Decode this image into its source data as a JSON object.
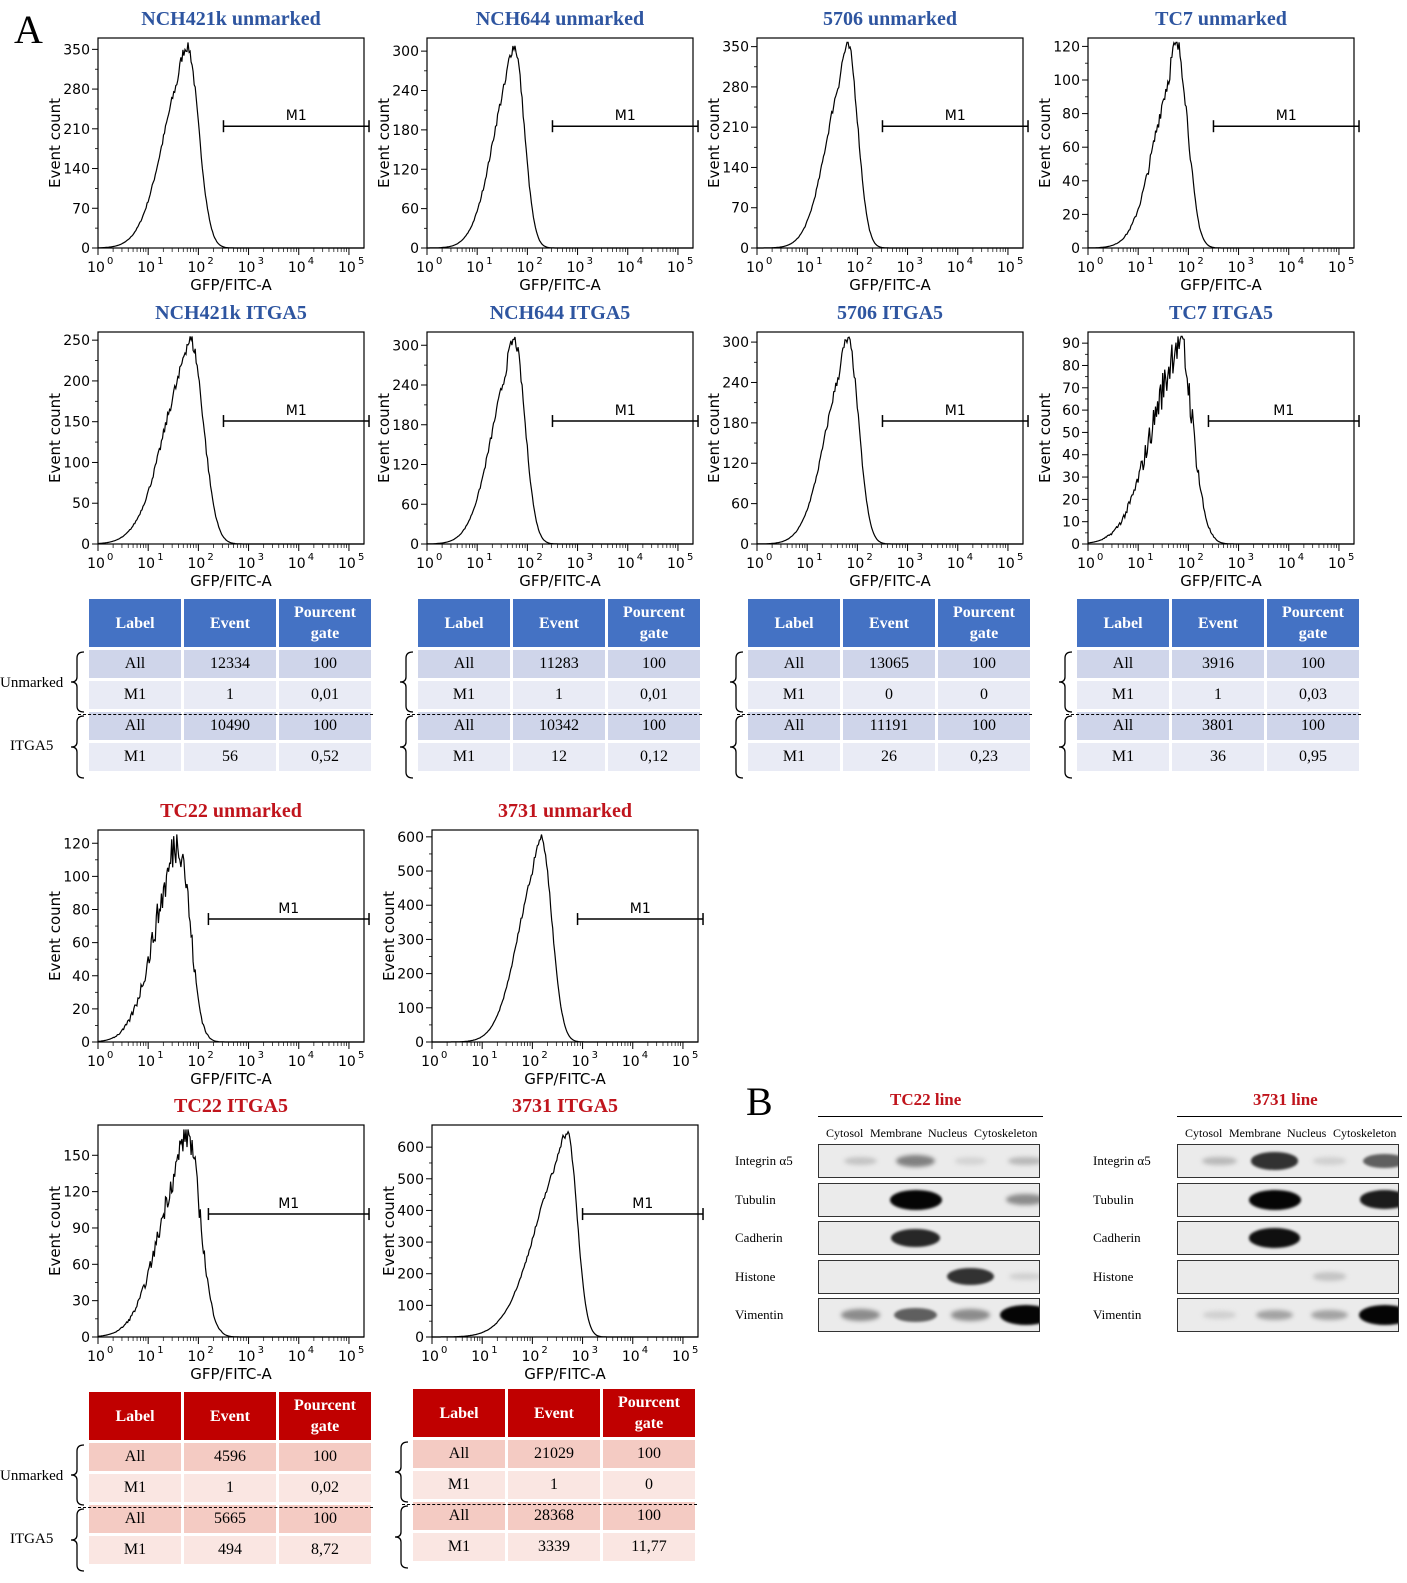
{
  "panels": {
    "a": "A",
    "b": "B"
  },
  "histograms": [
    {
      "title": "NCH421k unmarked",
      "color": "blue",
      "yticks": [
        0,
        70,
        140,
        210,
        280,
        350
      ],
      "ymax": 370,
      "peak": 60,
      "width": 0.32,
      "noise": 0.03,
      "gate": [
        2.5,
        5.4
      ],
      "kind": "normal"
    },
    {
      "title": "NCH644 unmarked",
      "color": "blue",
      "yticks": [
        0,
        60,
        120,
        180,
        240,
        300
      ],
      "ymax": 320,
      "peak": 55,
      "width": 0.28,
      "noise": 0.03,
      "gate": [
        2.5,
        5.4
      ],
      "kind": "normal"
    },
    {
      "title": "5706 unmarked",
      "color": "blue",
      "yticks": [
        0,
        70,
        140,
        210,
        280,
        350
      ],
      "ymax": 365,
      "peak": 65,
      "width": 0.28,
      "noise": 0.03,
      "gate": [
        2.5,
        5.4
      ],
      "kind": "normal"
    },
    {
      "title": "TC7 unmarked",
      "color": "blue",
      "yticks": [
        0,
        20,
        40,
        60,
        80,
        100,
        120
      ],
      "ymax": 125,
      "peak": 60,
      "width": 0.3,
      "noise": 0.06,
      "gate": [
        2.5,
        5.4
      ],
      "kind": "normal"
    },
    {
      "title": "NCH421k ITGA5",
      "color": "blue",
      "yticks": [
        0,
        50,
        100,
        150,
        200,
        250
      ],
      "ymax": 260,
      "peak": 70,
      "width": 0.36,
      "noise": 0.04,
      "gate": [
        2.5,
        5.4
      ],
      "kind": "normal"
    },
    {
      "title": "NCH644 ITGA5",
      "color": "blue",
      "yticks": [
        0,
        60,
        120,
        180,
        240,
        300
      ],
      "ymax": 320,
      "peak": 55,
      "width": 0.3,
      "noise": 0.03,
      "gate": [
        2.5,
        5.4
      ],
      "kind": "normal"
    },
    {
      "title": "5706 ITGA5",
      "color": "blue",
      "yticks": [
        0,
        60,
        120,
        180,
        240,
        300
      ],
      "ymax": 315,
      "peak": 65,
      "width": 0.3,
      "noise": 0.03,
      "gate": [
        2.5,
        5.4
      ],
      "kind": "normal"
    },
    {
      "title": "TC7 ITGA5",
      "color": "blue",
      "yticks": [
        0,
        10,
        20,
        30,
        40,
        50,
        60,
        70,
        80,
        90
      ],
      "ymax": 95,
      "peak": 65,
      "width": 0.38,
      "noise": 0.12,
      "gate": [
        2.4,
        5.4
      ],
      "kind": "normal"
    },
    {
      "title": "TC22 unmarked",
      "color": "red",
      "yticks": [
        0,
        20,
        40,
        60,
        80,
        100,
        120
      ],
      "ymax": 128,
      "peak": 40,
      "width": 0.32,
      "noise": 0.12,
      "gate": [
        2.2,
        5.4
      ],
      "kind": "normal"
    },
    {
      "title": "3731 unmarked",
      "color": "red",
      "yticks": [
        0,
        100,
        200,
        300,
        400,
        500,
        600
      ],
      "ymax": 620,
      "peak": 150,
      "width": 0.3,
      "noise": 0.02,
      "gate": [
        2.9,
        5.4
      ],
      "kind": "normal"
    },
    {
      "title": "TC22 ITGA5",
      "color": "red",
      "yticks": [
        0,
        30,
        60,
        90,
        120,
        150
      ],
      "ymax": 175,
      "peak": 60,
      "width": 0.36,
      "noise": 0.08,
      "gate": [
        2.2,
        5.4
      ],
      "kind": "normal"
    },
    {
      "title": "3731 ITGA5",
      "color": "red",
      "yticks": [
        0,
        100,
        200,
        300,
        400,
        500,
        600
      ],
      "ymax": 670,
      "peak": 500,
      "width": 0.42,
      "noise": 0.02,
      "gate": [
        3.0,
        5.4
      ],
      "kind": "skew"
    }
  ],
  "axis_common": {
    "xlabel": "GFP/FITC-A",
    "ylabel": "Event count",
    "gate_label": "M1",
    "xtick_base": "10",
    "xtick_exps": [
      "0",
      "1",
      "2",
      "3",
      "4",
      "5"
    ]
  },
  "tables": [
    {
      "color": "blue",
      "headers": [
        "Label",
        "Event",
        "Pourcent gate"
      ],
      "rows": [
        [
          "All",
          "12334",
          "100"
        ],
        [
          "M1",
          "1",
          "0,01"
        ],
        [
          "All",
          "10490",
          "100"
        ],
        [
          "M1",
          "56",
          "0,52"
        ]
      ]
    },
    {
      "color": "blue",
      "headers": [
        "Label",
        "Event",
        "Pourcent gate"
      ],
      "rows": [
        [
          "All",
          "11283",
          "100"
        ],
        [
          "M1",
          "1",
          "0,01"
        ],
        [
          "All",
          "10342",
          "100"
        ],
        [
          "M1",
          "12",
          "0,12"
        ]
      ]
    },
    {
      "color": "blue",
      "headers": [
        "Label",
        "Event",
        "Pourcent gate"
      ],
      "rows": [
        [
          "All",
          "13065",
          "100"
        ],
        [
          "M1",
          "0",
          "0"
        ],
        [
          "All",
          "11191",
          "100"
        ],
        [
          "M1",
          "26",
          "0,23"
        ]
      ]
    },
    {
      "color": "blue",
      "headers": [
        "Label",
        "Event",
        "Pourcent gate"
      ],
      "rows": [
        [
          "All",
          "3916",
          "100"
        ],
        [
          "M1",
          "1",
          "0,03"
        ],
        [
          "All",
          "3801",
          "100"
        ],
        [
          "M1",
          "36",
          "0,95"
        ]
      ]
    },
    {
      "color": "red",
      "headers": [
        "Label",
        "Event",
        "Pourcent gate"
      ],
      "rows": [
        [
          "All",
          "4596",
          "100"
        ],
        [
          "M1",
          "1",
          "0,02"
        ],
        [
          "All",
          "5665",
          "100"
        ],
        [
          "M1",
          "494",
          "8,72"
        ]
      ]
    },
    {
      "color": "red",
      "headers": [
        "Label",
        "Event",
        "Pourcent gate"
      ],
      "rows": [
        [
          "All",
          "21029",
          "100"
        ],
        [
          "M1",
          "1",
          "0"
        ],
        [
          "All",
          "28368",
          "100"
        ],
        [
          "M1",
          "3339",
          "11,77"
        ]
      ]
    }
  ],
  "row_group_labels": {
    "unmarked": "Unmarked",
    "itga5": "ITGA5"
  },
  "western": {
    "columns": [
      "Cytosol",
      "Membrane",
      "Nucleus",
      "Cytoskeleton"
    ],
    "proteins": [
      "Integrin α5",
      "Tubulin",
      "Cadherin",
      "Histone",
      "Vimentin"
    ],
    "blots": [
      {
        "title": "TC22 line",
        "intensity": [
          [
            0.15,
            0.45,
            0.08,
            0.2
          ],
          [
            0,
            1,
            0,
            0.4
          ],
          [
            0,
            0.85,
            0,
            0
          ],
          [
            0,
            0,
            0.8,
            0.1
          ],
          [
            0.4,
            0.6,
            0.4,
            1
          ]
        ]
      },
      {
        "title": "3731 line",
        "intensity": [
          [
            0.2,
            0.8,
            0.1,
            0.6
          ],
          [
            0,
            1,
            0,
            0.9
          ],
          [
            0,
            0.95,
            0,
            0
          ],
          [
            0,
            0,
            0.15,
            0
          ],
          [
            0.1,
            0.3,
            0.3,
            1
          ]
        ]
      }
    ]
  },
  "chart_data": {
    "type": "histogram",
    "xlabel": "GFP/FITC-A",
    "ylabel": "Event count",
    "xscale": "log",
    "xlim": [
      1,
      100000
    ],
    "series": [
      {
        "name": "NCH421k unmarked",
        "ylim": [
          0,
          370
        ]
      },
      {
        "name": "NCH644 unmarked",
        "ylim": [
          0,
          320
        ]
      },
      {
        "name": "5706 unmarked",
        "ylim": [
          0,
          365
        ]
      },
      {
        "name": "TC7 unmarked",
        "ylim": [
          0,
          125
        ]
      },
      {
        "name": "NCH421k ITGA5",
        "ylim": [
          0,
          260
        ]
      },
      {
        "name": "NCH644 ITGA5",
        "ylim": [
          0,
          320
        ]
      },
      {
        "name": "5706 ITGA5",
        "ylim": [
          0,
          315
        ]
      },
      {
        "name": "TC7 ITGA5",
        "ylim": [
          0,
          95
        ]
      },
      {
        "name": "TC22 unmarked",
        "ylim": [
          0,
          128
        ]
      },
      {
        "name": "3731 unmarked",
        "ylim": [
          0,
          620
        ]
      },
      {
        "name": "TC22 ITGA5",
        "ylim": [
          0,
          175
        ]
      },
      {
        "name": "3731 ITGA5",
        "ylim": [
          0,
          670
        ]
      }
    ]
  }
}
